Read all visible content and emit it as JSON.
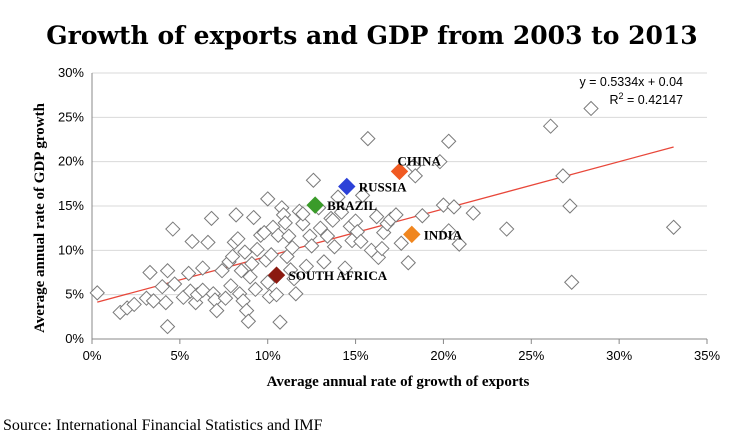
{
  "chart_data": {
    "type": "scatter",
    "title": "Growth of exports and GDP from 2003 to 2013",
    "xlabel": "Average annual rate of growth of exports",
    "ylabel": "Average annual rate of GDP growth",
    "xlim": [
      0,
      35
    ],
    "ylim": [
      0,
      30
    ],
    "x_ticks": [
      "0%",
      "5%",
      "10%",
      "15%",
      "20%",
      "25%",
      "30%",
      "35%"
    ],
    "y_ticks": [
      "0%",
      "5%",
      "10%",
      "15%",
      "20%",
      "25%",
      "30%"
    ],
    "grid": "horizontal",
    "trendline": {
      "slope": 0.5334,
      "intercept": 4.0,
      "equation": "y = 0.5334x + 0.04",
      "r2_prefix": "R",
      "r2_sup": "2",
      "r2_value": " = 0.42147",
      "color": "#e8473a"
    },
    "highlighted": [
      {
        "name": "CHINA",
        "x": 17.5,
        "y": 18.9,
        "color": "#f05a22",
        "label_pos": "top-right"
      },
      {
        "name": "RUSSIA",
        "x": 14.5,
        "y": 17.2,
        "color": "#2c41d8",
        "label_pos": "right"
      },
      {
        "name": "BRAZIL",
        "x": 12.7,
        "y": 15.1,
        "color": "#3a9b2a",
        "label_pos": "right"
      },
      {
        "name": "INDIA",
        "x": 18.2,
        "y": 11.8,
        "color": "#f0861f",
        "label_pos": "right"
      },
      {
        "name": "SOUTH AFRICA",
        "x": 10.5,
        "y": 7.2,
        "color": "#8b1a10",
        "label_pos": "right"
      }
    ],
    "points": [
      [
        0.3,
        5.2
      ],
      [
        1.6,
        3.0
      ],
      [
        2.0,
        3.5
      ],
      [
        2.4,
        3.9
      ],
      [
        3.1,
        4.6
      ],
      [
        3.3,
        7.5
      ],
      [
        3.5,
        4.3
      ],
      [
        4.0,
        5.9
      ],
      [
        4.2,
        4.1
      ],
      [
        4.3,
        1.4
      ],
      [
        4.3,
        7.7
      ],
      [
        4.6,
        12.4
      ],
      [
        4.7,
        6.2
      ],
      [
        5.2,
        4.7
      ],
      [
        5.5,
        7.4
      ],
      [
        5.6,
        5.4
      ],
      [
        5.7,
        11.0
      ],
      [
        5.9,
        4.1
      ],
      [
        6.0,
        5.0
      ],
      [
        6.3,
        8.0
      ],
      [
        6.3,
        5.5
      ],
      [
        6.6,
        10.9
      ],
      [
        6.8,
        13.6
      ],
      [
        6.9,
        5.1
      ],
      [
        7.0,
        4.4
      ],
      [
        7.1,
        3.2
      ],
      [
        7.4,
        7.7
      ],
      [
        7.6,
        4.6
      ],
      [
        7.8,
        8.7
      ],
      [
        7.9,
        6.0
      ],
      [
        8.0,
        9.3
      ],
      [
        8.1,
        10.9
      ],
      [
        8.2,
        14.0
      ],
      [
        8.3,
        11.3
      ],
      [
        8.4,
        5.1
      ],
      [
        8.5,
        7.7
      ],
      [
        8.6,
        4.3
      ],
      [
        8.7,
        9.8
      ],
      [
        8.8,
        3.2
      ],
      [
        8.9,
        2.0
      ],
      [
        9.0,
        7.0
      ],
      [
        9.1,
        8.5
      ],
      [
        9.2,
        13.7
      ],
      [
        9.3,
        5.6
      ],
      [
        9.4,
        10.1
      ],
      [
        9.6,
        11.7
      ],
      [
        9.8,
        12.0
      ],
      [
        9.9,
        8.9
      ],
      [
        10.0,
        15.8
      ],
      [
        10.0,
        6.4
      ],
      [
        10.1,
        4.8
      ],
      [
        10.2,
        9.5
      ],
      [
        10.3,
        12.6
      ],
      [
        10.5,
        5.0
      ],
      [
        10.6,
        11.7
      ],
      [
        10.7,
        1.9
      ],
      [
        10.8,
        14.8
      ],
      [
        10.9,
        14.0
      ],
      [
        11.0,
        13.1
      ],
      [
        11.1,
        9.3
      ],
      [
        11.2,
        11.6
      ],
      [
        11.3,
        7.8
      ],
      [
        11.4,
        10.3
      ],
      [
        11.5,
        6.8
      ],
      [
        11.6,
        5.1
      ],
      [
        11.8,
        14.4
      ],
      [
        12.0,
        13.0
      ],
      [
        12.0,
        14.1
      ],
      [
        12.2,
        8.2
      ],
      [
        12.4,
        11.6
      ],
      [
        12.5,
        10.5
      ],
      [
        12.6,
        17.9
      ],
      [
        12.9,
        14.8
      ],
      [
        13.0,
        12.5
      ],
      [
        13.2,
        8.7
      ],
      [
        13.4,
        11.6
      ],
      [
        13.6,
        13.6
      ],
      [
        13.7,
        13.4
      ],
      [
        13.8,
        10.4
      ],
      [
        14.0,
        16.0
      ],
      [
        14.2,
        14.3
      ],
      [
        14.4,
        8.0
      ],
      [
        14.7,
        12.7
      ],
      [
        14.8,
        11.1
      ],
      [
        15.0,
        13.3
      ],
      [
        15.1,
        12.1
      ],
      [
        15.3,
        11.0
      ],
      [
        15.4,
        16.2
      ],
      [
        15.7,
        22.6
      ],
      [
        15.9,
        10.0
      ],
      [
        16.2,
        13.8
      ],
      [
        16.3,
        9.2
      ],
      [
        16.5,
        10.2
      ],
      [
        16.6,
        12.0
      ],
      [
        16.8,
        13.0
      ],
      [
        17.0,
        13.5
      ],
      [
        17.3,
        14.0
      ],
      [
        17.6,
        10.8
      ],
      [
        18.0,
        8.6
      ],
      [
        18.3,
        19.5
      ],
      [
        18.4,
        18.4
      ],
      [
        18.8,
        13.9
      ],
      [
        19.8,
        20.0
      ],
      [
        20.0,
        15.1
      ],
      [
        20.3,
        22.3
      ],
      [
        20.3,
        12.2
      ],
      [
        20.6,
        14.9
      ],
      [
        20.9,
        10.7
      ],
      [
        21.7,
        14.2
      ],
      [
        23.6,
        12.4
      ],
      [
        26.1,
        24.0
      ],
      [
        26.8,
        18.4
      ],
      [
        27.2,
        15.0
      ],
      [
        27.3,
        6.4
      ],
      [
        28.4,
        26.0
      ],
      [
        33.1,
        12.6
      ]
    ],
    "source": "Source: International Financial Statistics and IMF"
  }
}
